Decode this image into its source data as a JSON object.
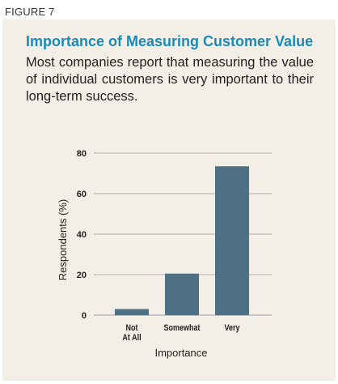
{
  "figure_label": "FIGURE 7",
  "title": "Importance of Measuring Customer Value",
  "subtitle": "Most companies report that measuring the value of individual customers is very important to their long-term success.",
  "colors": {
    "bar": "#4f6f84",
    "title": "#1a8bb8",
    "panel": "#f3efe6",
    "grid": "#9a9a9a"
  },
  "chart_data": {
    "type": "bar",
    "categories": [
      "Not At All",
      "Somewhat",
      "Very"
    ],
    "category_label_lines": [
      [
        "Not",
        "At All"
      ],
      [
        "Somewhat"
      ],
      [
        "Very"
      ]
    ],
    "values": [
      3,
      20.5,
      73.5
    ],
    "xlabel": "Importance",
    "ylabel": "Respondents  (%)",
    "ylim": [
      0,
      80
    ],
    "yticks": [
      0,
      20,
      40,
      60,
      80
    ],
    "grid": true,
    "legend": "none"
  }
}
